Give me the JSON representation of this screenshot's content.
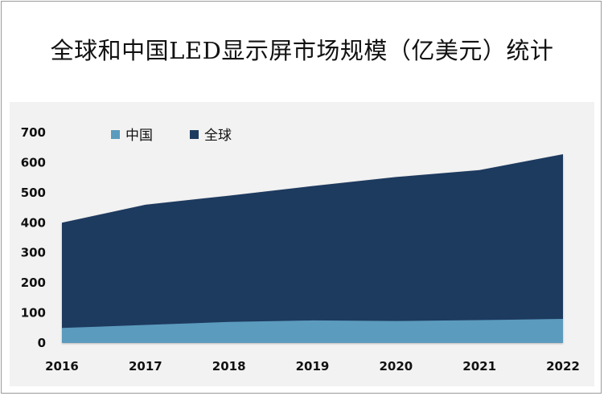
{
  "title": "全球和中国LED显示屏市场规模（亿美元）统计",
  "colors": {
    "global": "#1d3a5f",
    "china": "#5b9bbd",
    "plot_background": "#f2f2f2"
  },
  "chart_data": {
    "type": "area",
    "title": "全球和中国LED显示屏市场规模（亿美元）统计",
    "xlabel": "",
    "ylabel": "",
    "categories": [
      "2016",
      "2017",
      "2018",
      "2019",
      "2020",
      "2021",
      "2022"
    ],
    "ylim": [
      0,
      700
    ],
    "yticks": [
      0,
      100,
      200,
      300,
      400,
      500,
      600,
      700
    ],
    "grid": false,
    "legend_position": "top-left",
    "series": [
      {
        "name": "中国",
        "color": "#5b9bbd",
        "values": [
          50,
          60,
          70,
          75,
          73,
          76,
          80
        ]
      },
      {
        "name": "全球",
        "color": "#1d3a5f",
        "values": [
          400,
          460,
          490,
          522,
          552,
          575,
          628
        ]
      }
    ]
  }
}
